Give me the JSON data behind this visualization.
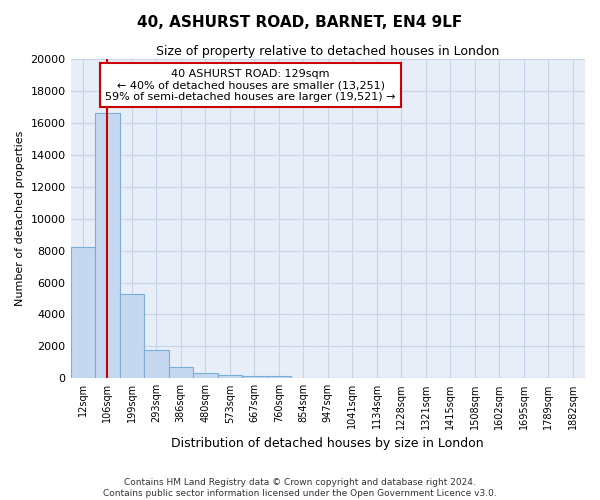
{
  "title": "40, ASHURST ROAD, BARNET, EN4 9LF",
  "subtitle": "Size of property relative to detached houses in London",
  "xlabel": "Distribution of detached houses by size in London",
  "ylabel": "Number of detached properties",
  "categories": [
    "12sqm",
    "106sqm",
    "199sqm",
    "293sqm",
    "386sqm",
    "480sqm",
    "573sqm",
    "667sqm",
    "760sqm",
    "854sqm",
    "947sqm",
    "1041sqm",
    "1134sqm",
    "1228sqm",
    "1321sqm",
    "1415sqm",
    "1508sqm",
    "1602sqm",
    "1695sqm",
    "1789sqm",
    "1882sqm"
  ],
  "values": [
    8200,
    16600,
    5300,
    1800,
    700,
    350,
    200,
    150,
    120,
    0,
    0,
    0,
    0,
    0,
    0,
    0,
    0,
    0,
    0,
    0,
    0
  ],
  "bar_color": "#c5d8f0",
  "bar_edge_color": "#7aaed6",
  "property_line_x": 1.0,
  "annotation_text_line1": "40 ASHURST ROAD: 129sqm",
  "annotation_text_line2": "← 40% of detached houses are smaller (13,251)",
  "annotation_text_line3": "59% of semi-detached houses are larger (19,521) →",
  "annotation_box_facecolor": "#ffffff",
  "annotation_border_color": "#cc0000",
  "vline_color": "#cc0000",
  "grid_color": "#c8d4e8",
  "background_color": "#e8eef8",
  "ylim": [
    0,
    20000
  ],
  "yticks": [
    0,
    2000,
    4000,
    6000,
    8000,
    10000,
    12000,
    14000,
    16000,
    18000,
    20000
  ],
  "footer_line1": "Contains HM Land Registry data © Crown copyright and database right 2024.",
  "footer_line2": "Contains public sector information licensed under the Open Government Licence v3.0."
}
